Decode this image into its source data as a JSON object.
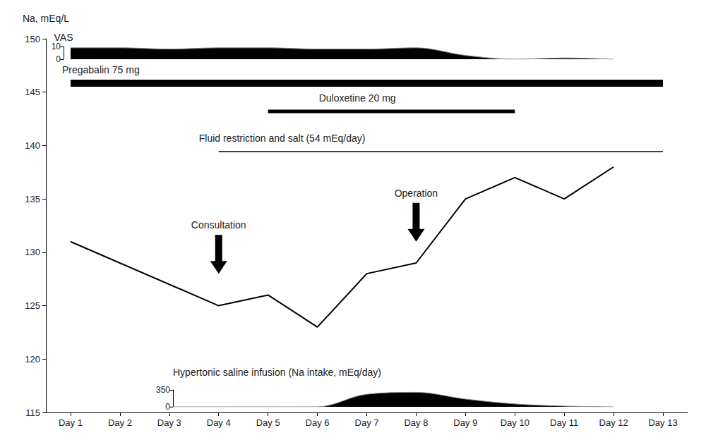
{
  "chart_data": [
    {
      "type": "area",
      "y_label": "VAS",
      "categories": [
        "Day 1",
        "Day 2",
        "Day 3",
        "Day 4",
        "Day 5",
        "Day 6",
        "Day 7",
        "Day 8",
        "Day 9",
        "Day 10",
        "Day 11",
        "Day 12",
        "Day 13"
      ],
      "values": [
        9,
        9,
        8,
        9,
        9,
        8,
        8,
        9,
        3,
        0,
        1,
        0,
        null
      ],
      "color": "#000000",
      "ylim": [
        0,
        10
      ],
      "yticks": [
        0,
        10
      ]
    },
    {
      "type": "line",
      "y_label": "Na, mEq/L",
      "categories": [
        "Day 1",
        "Day 2",
        "Day 3",
        "Day 4",
        "Day 5",
        "Day 6",
        "Day 7",
        "Day 8",
        "Day 9",
        "Day 10",
        "Day 11",
        "Day 12",
        "Day 13"
      ],
      "values": [
        131,
        null,
        null,
        125,
        126,
        123,
        128,
        129,
        135,
        137,
        135,
        138,
        null
      ],
      "color": "#000000",
      "ylim": [
        115,
        150
      ],
      "yticks": [
        115,
        120,
        125,
        130,
        135,
        140,
        145,
        150
      ],
      "grid": false,
      "periods": [
        {
          "label": "Pregabalin 75 mg",
          "start": "Day 1",
          "end": "Day 13"
        },
        {
          "label": "Duloxetine 20 mg",
          "start": "Day 5",
          "end": "Day 10"
        },
        {
          "label": "Fluid restriction and salt (54 mEq/day)",
          "start": "Day 4",
          "end": "Day 13"
        }
      ],
      "annotations": [
        {
          "text": "Consultation",
          "x": "Day 4",
          "y": 128
        },
        {
          "text": "Operation",
          "x": "Day 8",
          "y": 131
        }
      ]
    },
    {
      "type": "area",
      "y_label": "Hypertonic saline infusion (Na intake, mEq/day)",
      "categories": [
        "Day 1",
        "Day 2",
        "Day 3",
        "Day 4",
        "Day 5",
        "Day 6",
        "Day 7",
        "Day 8",
        "Day 9",
        "Day 10",
        "Day 11",
        "Day 12",
        "Day 13"
      ],
      "values": [
        null,
        null,
        0,
        0,
        0,
        0,
        260,
        300,
        160,
        60,
        15,
        0,
        null
      ],
      "color": "#000000",
      "ylim": [
        0,
        350
      ],
      "yticks": [
        0,
        350
      ]
    }
  ]
}
